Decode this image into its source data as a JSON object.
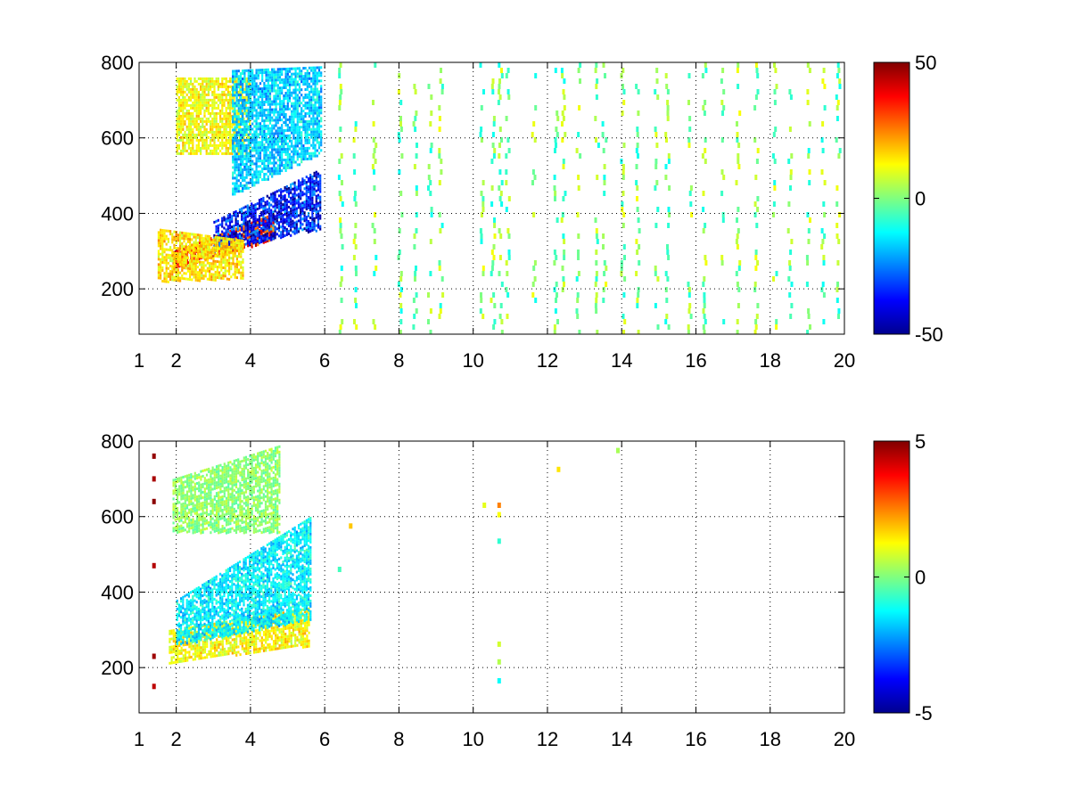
{
  "chart_data": [
    {
      "type": "heatmap",
      "title": "",
      "xlabel": "",
      "ylabel": "",
      "xlim": [
        1,
        20
      ],
      "ylim": [
        80,
        800
      ],
      "x_ticks": [
        1,
        2,
        4,
        6,
        8,
        10,
        12,
        14,
        16,
        18,
        20
      ],
      "y_ticks": [
        200,
        400,
        600,
        800
      ],
      "grid": true,
      "colormap": "jet",
      "colorbar": {
        "range": [
          -50,
          50
        ],
        "ticks": [
          50,
          0,
          -50
        ]
      },
      "features": [
        {
          "x": [
            1.9,
            4.6
          ],
          "y_start": [
            255,
            330
          ],
          "y_end": [
            300,
            400
          ],
          "value": 38
        },
        {
          "x": [
            3.0,
            5.9
          ],
          "y_start": [
            300,
            360
          ],
          "y_end": [
            380,
            520
          ],
          "value": -42
        },
        {
          "x": [
            1.5,
            3.8
          ],
          "y_start": [
            220,
            230
          ],
          "y_end": [
            360,
            330
          ],
          "value": 18
        },
        {
          "x": [
            2.0,
            4.0
          ],
          "y_start": [
            560,
            560
          ],
          "y_end": [
            760,
            760
          ],
          "value": 14
        },
        {
          "x": [
            3.5,
            5.9
          ],
          "y_start": [
            450,
            560
          ],
          "y_end": [
            780,
            790
          ],
          "value": -20
        }
      ],
      "scatter_columns": [
        6.4,
        6.8,
        7.3,
        8.0,
        8.4,
        8.8,
        9.1,
        10.2,
        10.5,
        10.7,
        10.9,
        11.6,
        12.2,
        12.4,
        12.8,
        13.3,
        13.5,
        14.0,
        14.4,
        14.9,
        15.2,
        15.8,
        16.2,
        16.7,
        17.1,
        17.6,
        18.1,
        18.5,
        19.0,
        19.4,
        19.8
      ],
      "scatter_value_range": [
        -12,
        12
      ]
    },
    {
      "type": "heatmap",
      "title": "",
      "xlabel": "",
      "ylabel": "",
      "xlim": [
        1,
        20
      ],
      "ylim": [
        80,
        800
      ],
      "x_ticks": [
        1,
        2,
        4,
        6,
        8,
        10,
        12,
        14,
        16,
        18,
        20
      ],
      "y_ticks": [
        200,
        400,
        600,
        800
      ],
      "grid": true,
      "colormap": "jet",
      "colorbar": {
        "range": [
          -5,
          5
        ],
        "ticks": [
          5,
          0,
          -5
        ]
      },
      "features": [
        {
          "x": [
            1.8,
            5.6
          ],
          "y_start": [
            215,
            260
          ],
          "y_end": [
            300,
            360
          ],
          "value": 1.5
        },
        {
          "x": [
            2.0,
            5.6
          ],
          "y_start": [
            260,
            330
          ],
          "y_end": [
            380,
            600
          ],
          "value": -1.6
        },
        {
          "x": [
            1.9,
            4.8
          ],
          "y_start": [
            560,
            560
          ],
          "y_end": [
            700,
            790
          ],
          "value": 0.2
        }
      ],
      "isolated_points": [
        {
          "x": 1.4,
          "y": 760,
          "value": 4.8
        },
        {
          "x": 1.4,
          "y": 700,
          "value": 4.6
        },
        {
          "x": 1.4,
          "y": 640,
          "value": 4.9
        },
        {
          "x": 1.4,
          "y": 470,
          "value": 4.5
        },
        {
          "x": 1.4,
          "y": 230,
          "value": 4.7
        },
        {
          "x": 1.4,
          "y": 150,
          "value": 4.4
        },
        {
          "x": 10.3,
          "y": 630,
          "value": 1.0
        },
        {
          "x": 10.7,
          "y": 630,
          "value": 2.5
        },
        {
          "x": 10.7,
          "y": 605,
          "value": 1.2
        },
        {
          "x": 10.7,
          "y": 535,
          "value": -0.8
        },
        {
          "x": 10.7,
          "y": 262,
          "value": 0.8
        },
        {
          "x": 10.7,
          "y": 215,
          "value": 0.5
        },
        {
          "x": 10.7,
          "y": 165,
          "value": -1.2
        },
        {
          "x": 12.3,
          "y": 725,
          "value": 1.5
        },
        {
          "x": 13.9,
          "y": 775,
          "value": 0.4
        },
        {
          "x": 6.7,
          "y": 575,
          "value": 1.8
        },
        {
          "x": 6.4,
          "y": 460,
          "value": -0.6
        }
      ]
    }
  ]
}
